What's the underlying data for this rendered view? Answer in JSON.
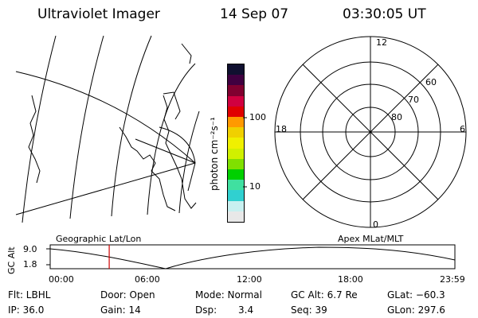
{
  "header": {
    "instrument": "Ultraviolet Imager",
    "date": "14 Sep 07",
    "time": "03:30:05 UT"
  },
  "colorbar": {
    "unit_label": "photon cm⁻²s⁻¹",
    "tick_100": "100",
    "tick_10": "10",
    "colors": [
      "#e8e8e8",
      "#c8f0f0",
      "#30d0d0",
      "#40e0a0",
      "#00d000",
      "#80e000",
      "#d0f000",
      "#f0f000",
      "#f0d000",
      "#ff9900",
      "#e00000",
      "#d00040",
      "#800030",
      "#400040",
      "#101030"
    ]
  },
  "polar_plot": {
    "label_top": "12",
    "label_left": "18",
    "label_right": "6",
    "label_bottom": "0",
    "ring_60": "60",
    "ring_70": "70",
    "ring_80": "80"
  },
  "altitude_plot": {
    "ylabel": "GC Alt",
    "ytick_max": "9.0",
    "ytick_min": "1.8",
    "left_label": "Geographic Lat/Lon",
    "right_label": "Apex MLat/MLT",
    "xticks": [
      "00:00",
      "06:00",
      "12:00",
      "18:00",
      "23:59"
    ],
    "current_time_hours": 3.5,
    "marker_color": "#d00000"
  },
  "info": {
    "filter": "Flt: LBHL",
    "door": "Door: Open",
    "mode": "Mode: Normal",
    "gc_alt": "GC Alt: 6.7 Re",
    "glat": "GLat: −60.3",
    "ip": "IP: 36.0",
    "gain": "Gain: 14",
    "dsp_label": "Dsp:",
    "dsp_value": "3.4",
    "seq": "Seq: 39",
    "glon": "GLon: 297.6"
  }
}
